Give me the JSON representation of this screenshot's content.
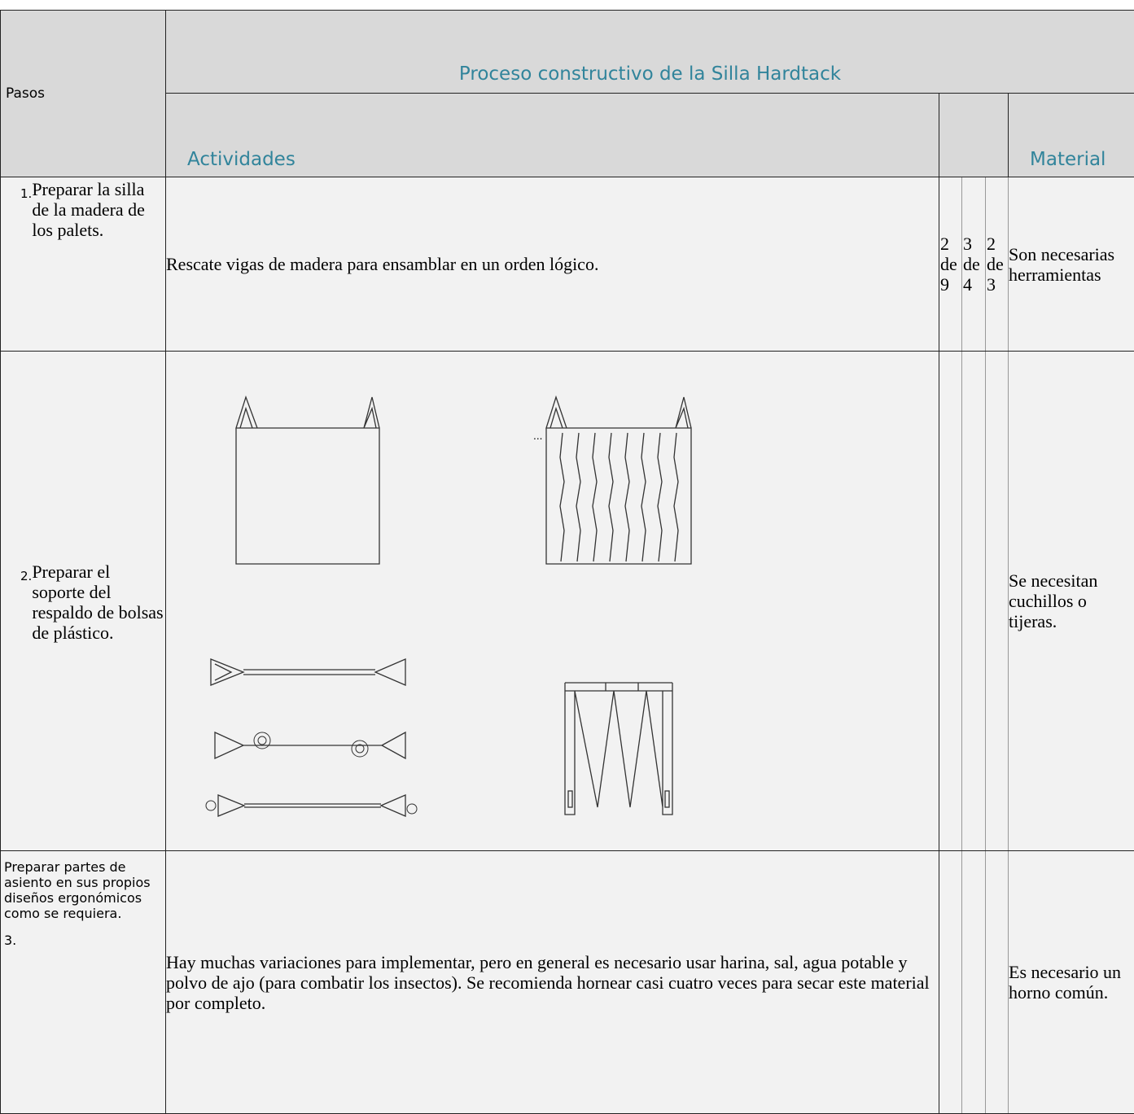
{
  "table": {
    "title": "Proceso constructivo de la Silla Hardtack",
    "headers": {
      "steps": "Pasos",
      "activities": "Actividades",
      "material": "Material"
    },
    "rows": [
      {
        "number": "1.",
        "step": "Preparar la silla de la madera de los palets.",
        "activity": "Rescate vigas de madera para ensamblar en un orden lógico.",
        "counts": [
          "2 de 9",
          "3 de 4",
          "2 de 3"
        ],
        "material": "Son necesarias herramientas"
      },
      {
        "number": "2.",
        "step": "Preparar el soporte del respaldo de bolsas de plástico.",
        "drawing_note": "...",
        "material": "Se necesitan cuchillos o tijeras."
      },
      {
        "number": "3.",
        "step": "Preparar partes de asiento en sus propios diseños ergonómicos como se requiera.",
        "activity": "Hay muchas variaciones para implementar, pero en general es necesario usar harina, sal, agua potable y polvo de ajo (para combatir los insectos). Se recomienda hornear casi cuatro veces para secar este material por completo.",
        "material": "Es necesario un horno común."
      }
    ]
  }
}
